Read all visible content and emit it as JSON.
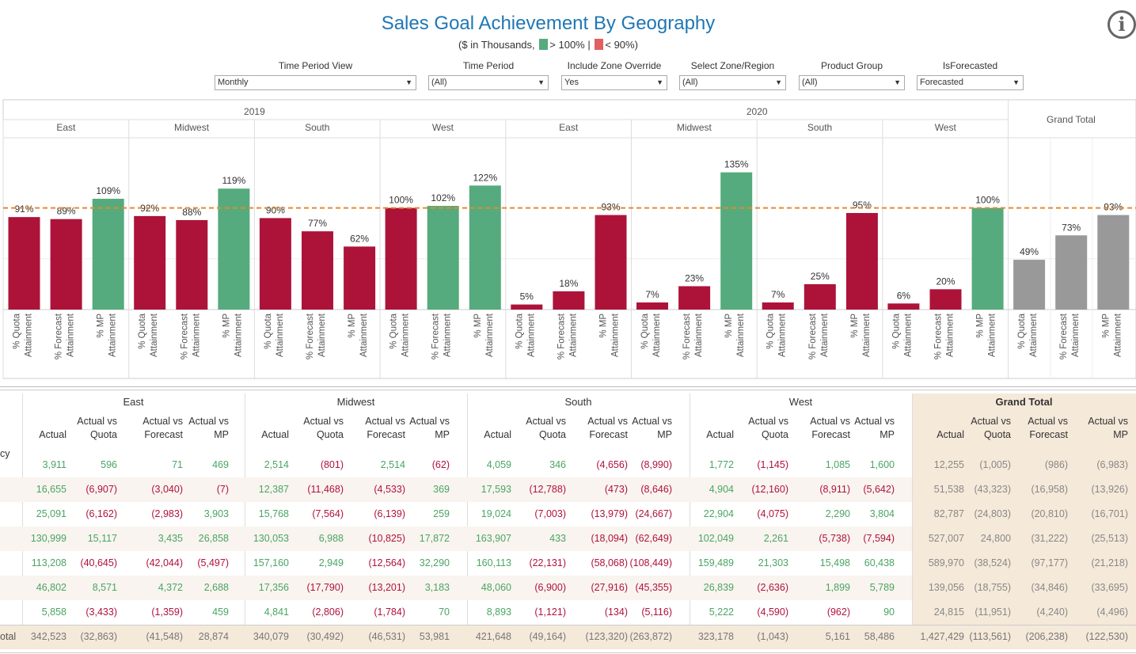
{
  "title": "Sales Goal Achievement By Geography",
  "subtitle": {
    "prefix": "($ in Thousands,",
    "green_text": "> 100%",
    "sep": "|",
    "red_text": "< 90%)"
  },
  "colors": {
    "green": "#55ab7d",
    "red": "#ad1339",
    "gray": "#999999",
    "target_line": "#e58a2a",
    "title": "#1f77b4"
  },
  "info_icon": "info-icon",
  "filters": [
    {
      "label": "Time Period View",
      "value": "Monthly"
    },
    {
      "label": "Time Period",
      "value": "(All)"
    },
    {
      "label": "Include Zone Override",
      "value": "Yes"
    },
    {
      "label": "Select Zone/Region",
      "value": "(All)"
    },
    {
      "label": "Product Group",
      "value": "(All)"
    },
    {
      "label": "IsForecasted",
      "value": "Forecasted"
    }
  ],
  "chart_data": {
    "type": "bar",
    "target_line": 100,
    "ylim": [
      0,
      140
    ],
    "measures": [
      "% Quota Attainment",
      "% Forecast Attainment",
      "% MP Attainment"
    ],
    "measure_lines": [
      [
        "% Quota",
        "Attainment"
      ],
      [
        "% Forecast",
        "Attainment"
      ],
      [
        "% MP",
        "Attainment"
      ]
    ],
    "years": [
      {
        "year": "2019",
        "regions": [
          {
            "name": "East",
            "values": [
              91,
              89,
              109
            ]
          },
          {
            "name": "Midwest",
            "values": [
              92,
              88,
              119
            ]
          },
          {
            "name": "South",
            "values": [
              90,
              77,
              62
            ]
          },
          {
            "name": "West",
            "values": [
              100,
              102,
              122
            ]
          }
        ]
      },
      {
        "year": "2020",
        "regions": [
          {
            "name": "East",
            "values": [
              5,
              18,
              93
            ]
          },
          {
            "name": "Midwest",
            "values": [
              7,
              23,
              135
            ]
          },
          {
            "name": "South",
            "values": [
              7,
              25,
              95
            ]
          },
          {
            "name": "West",
            "values": [
              6,
              20,
              100
            ]
          }
        ]
      }
    ],
    "grand_total": {
      "name": "Grand Total",
      "values": [
        49,
        73,
        93
      ]
    }
  },
  "table": {
    "groups": [
      "East",
      "Midwest",
      "South",
      "West",
      "Grand Total"
    ],
    "columns": [
      [
        "",
        "Actual"
      ],
      [
        "Actual vs",
        "Quota"
      ],
      [
        "Actual vs",
        "Forecast"
      ],
      [
        "Actual vs",
        "MP"
      ]
    ],
    "row_label_header": "cy",
    "total_label": "otal",
    "rows": [
      [
        "3,911",
        "596",
        "71",
        "469",
        "2,514",
        "(801)",
        "2,514",
        "(62)",
        "4,059",
        "346",
        "(4,656)",
        "(8,990)",
        "1,772",
        "(1,145)",
        "1,085",
        "1,600",
        "12,255",
        "(1,005)",
        "(986)",
        "(6,983)"
      ],
      [
        "16,655",
        "(6,907)",
        "(3,040)",
        "(7)",
        "12,387",
        "(11,468)",
        "(4,533)",
        "369",
        "17,593",
        "(12,788)",
        "(473)",
        "(8,646)",
        "4,904",
        "(12,160)",
        "(8,911)",
        "(5,642)",
        "51,538",
        "(43,323)",
        "(16,958)",
        "(13,926)"
      ],
      [
        "25,091",
        "(6,162)",
        "(2,983)",
        "3,903",
        "15,768",
        "(7,564)",
        "(6,139)",
        "259",
        "19,024",
        "(7,003)",
        "(13,979)",
        "(24,667)",
        "22,904",
        "(4,075)",
        "2,290",
        "3,804",
        "82,787",
        "(24,803)",
        "(20,810)",
        "(16,701)"
      ],
      [
        "130,999",
        "15,117",
        "3,435",
        "26,858",
        "130,053",
        "6,988",
        "(10,825)",
        "17,872",
        "163,907",
        "433",
        "(18,094)",
        "(62,649)",
        "102,049",
        "2,261",
        "(5,738)",
        "(7,594)",
        "527,007",
        "24,800",
        "(31,222)",
        "(25,513)"
      ],
      [
        "113,208",
        "(40,645)",
        "(42,044)",
        "(5,497)",
        "157,160",
        "2,949",
        "(12,564)",
        "32,290",
        "160,113",
        "(22,131)",
        "(58,068)",
        "(108,449)",
        "159,489",
        "21,303",
        "15,498",
        "60,438",
        "589,970",
        "(38,524)",
        "(97,177)",
        "(21,218)"
      ],
      [
        "46,802",
        "8,571",
        "4,372",
        "2,688",
        "17,356",
        "(17,790)",
        "(13,201)",
        "3,183",
        "48,060",
        "(6,900)",
        "(27,916)",
        "(45,355)",
        "26,839",
        "(2,636)",
        "1,899",
        "5,789",
        "139,056",
        "(18,755)",
        "(34,846)",
        "(33,695)"
      ],
      [
        "5,858",
        "(3,433)",
        "(1,359)",
        "459",
        "4,841",
        "(2,806)",
        "(1,784)",
        "70",
        "8,893",
        "(1,121)",
        "(134)",
        "(5,116)",
        "5,222",
        "(4,590)",
        "(962)",
        "90",
        "24,815",
        "(11,951)",
        "(4,240)",
        "(4,496)"
      ]
    ],
    "total": [
      "342,523",
      "(32,863)",
      "(41,548)",
      "28,874",
      "340,079",
      "(30,492)",
      "(46,531)",
      "53,981",
      "421,648",
      "(49,164)",
      "(123,320)",
      "(263,872)",
      "323,178",
      "(1,043)",
      "5,161",
      "58,486",
      "1,427,429",
      "(113,561)",
      "(206,238)",
      "(122,530)"
    ]
  }
}
